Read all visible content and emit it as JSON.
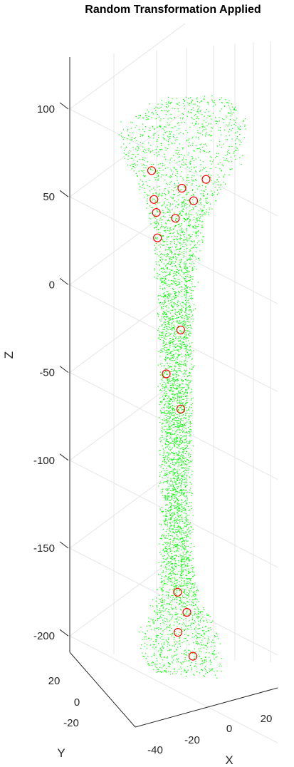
{
  "chart_data": {
    "type": "scatter",
    "title": "Random Transformation Applied",
    "xlabel": "X",
    "ylabel": "Y",
    "zlabel": "Z",
    "z_ticks": [
      "100",
      "50",
      "0",
      "-50",
      "-100",
      "-150",
      "-200"
    ],
    "z_tick_values": [
      100,
      50,
      0,
      -50,
      -100,
      -150,
      -200
    ],
    "x_ticks": [
      "-40",
      "-20",
      "0",
      "20"
    ],
    "y_ticks": [
      "20",
      "0",
      "-20"
    ],
    "grid": true,
    "series": [
      {
        "color": "#00ff00",
        "marker": "point"
      },
      {
        "color": "#ff0000",
        "marker": "circle"
      }
    ],
    "landmarks": [
      {
        "x": -30,
        "y": 10,
        "z": 80
      },
      {
        "x": -27,
        "y": 8,
        "z": 63
      },
      {
        "x": -24,
        "y": 6,
        "z": 55
      },
      {
        "x": -22,
        "y": 4,
        "z": 40
      },
      {
        "x": -5,
        "y": 10,
        "z": 70
      },
      {
        "x": 15,
        "y": 10,
        "z": 75
      },
      {
        "x": 10,
        "y": 0,
        "z": 60
      },
      {
        "x": -5,
        "y": 0,
        "z": 50
      },
      {
        "x": 2,
        "y": -5,
        "z": -15
      },
      {
        "x": -10,
        "y": -5,
        "z": -40
      },
      {
        "x": 2,
        "y": -5,
        "z": -60
      },
      {
        "x": 10,
        "y": -25,
        "z": -170
      },
      {
        "x": 15,
        "y": -20,
        "z": -180
      },
      {
        "x": 5,
        "y": -15,
        "z": -190
      },
      {
        "x": 20,
        "y": -20,
        "z": -205
      }
    ]
  },
  "colors": {
    "cloud": "#00ff00",
    "landmark": "#ff0000",
    "axis": "#262626",
    "grid": "#e6e6e6"
  }
}
